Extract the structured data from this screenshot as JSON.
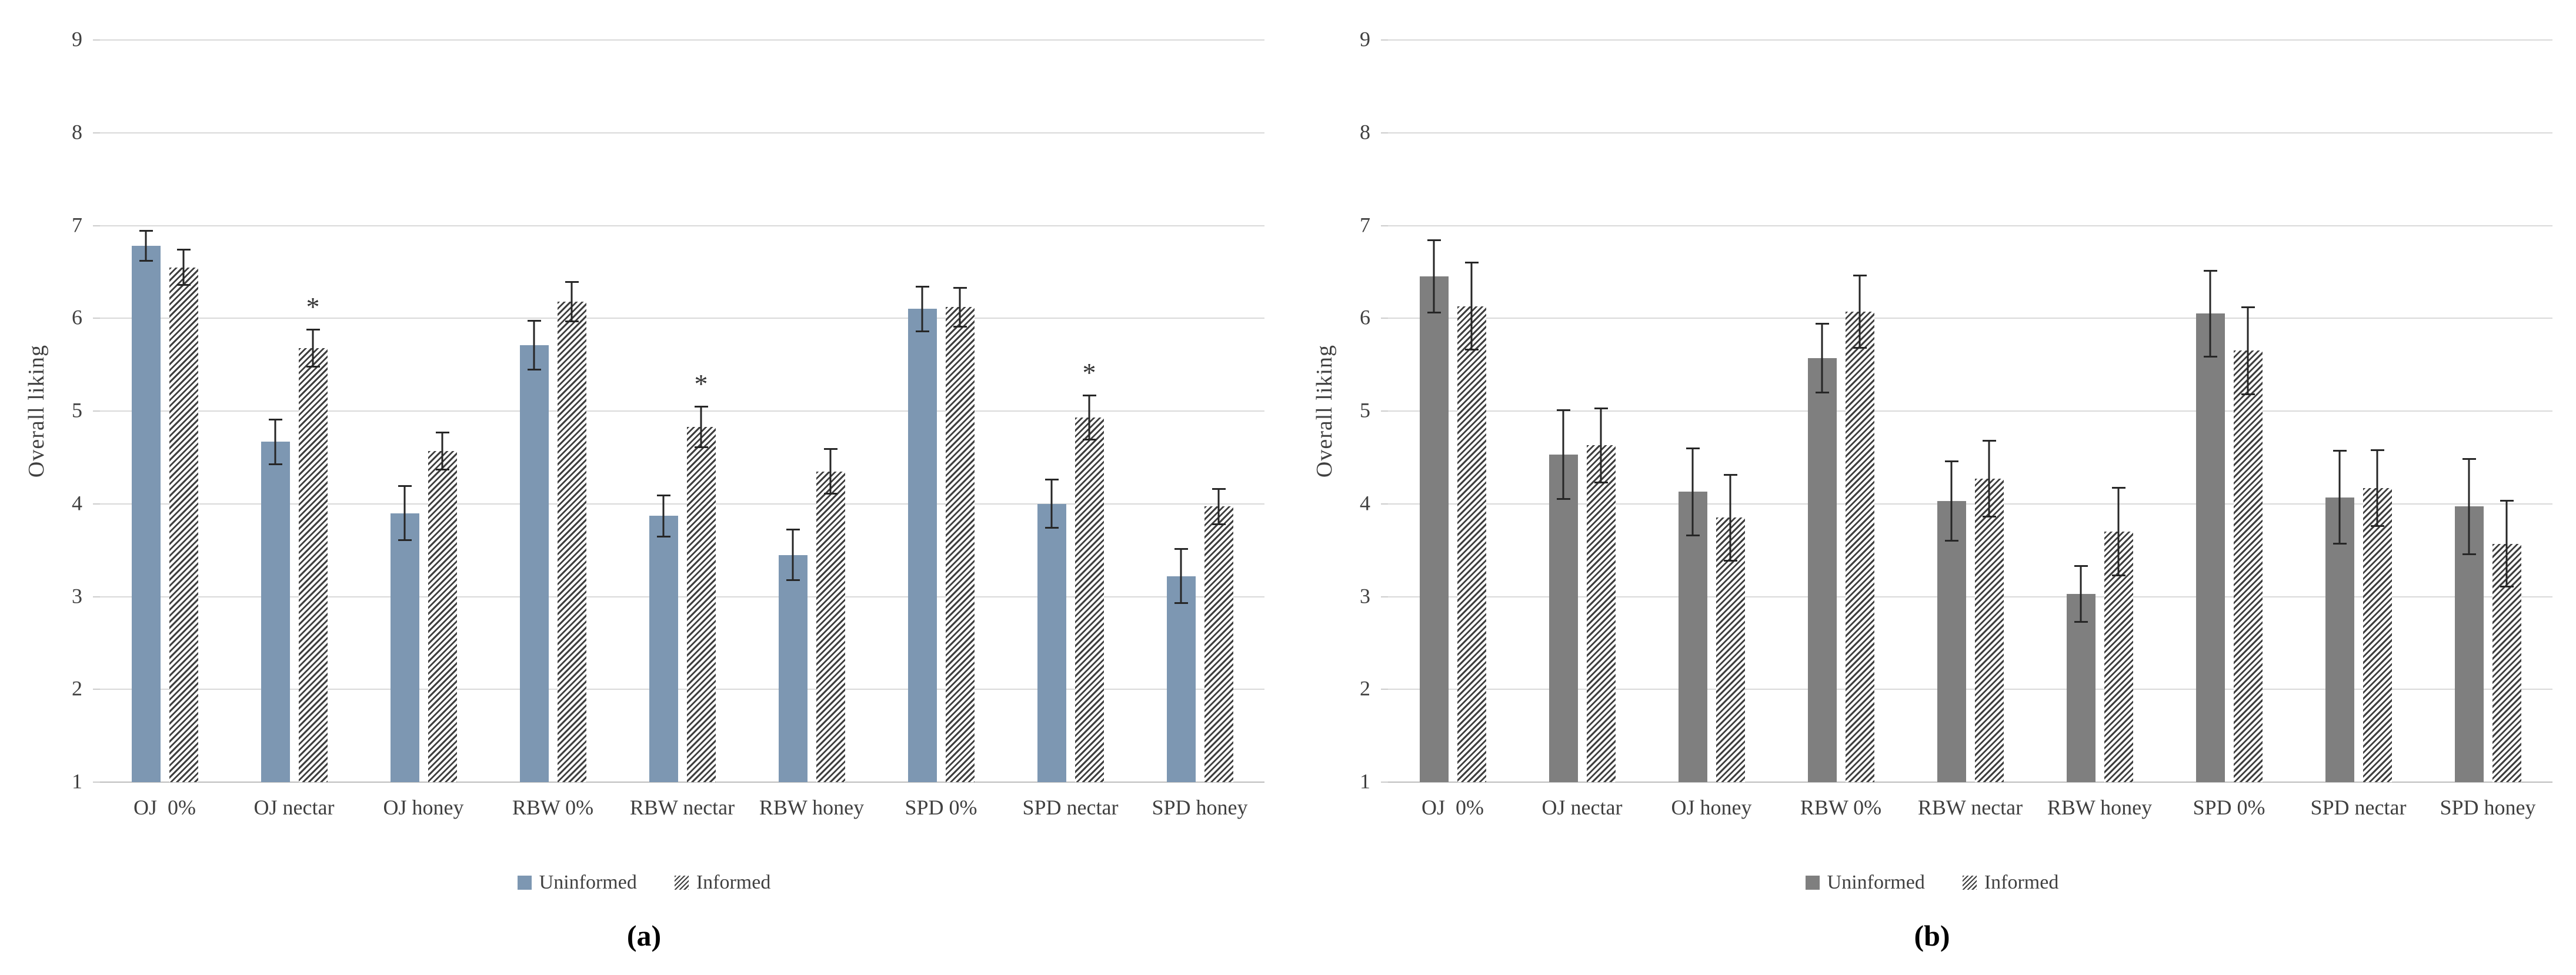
{
  "colors": {
    "uninformed_a": "#7d97b2",
    "uninformed_b": "#7f7f7f",
    "hatch_stripe": "#3f3f3f",
    "gridline": "#d9d9d9",
    "error_bar": "#262626",
    "text": "#404040"
  },
  "chart_data": [
    {
      "type": "bar",
      "panel_label": "(a)",
      "title": "",
      "xlabel": "",
      "ylabel": "Overall liking",
      "ylim": [
        1,
        9
      ],
      "yticks": [
        9,
        8,
        7,
        6,
        5,
        4,
        3,
        2,
        1
      ],
      "grid": true,
      "legend_position": "bottom",
      "categories": [
        "OJ  0%",
        "OJ nectar",
        "OJ honey",
        "RBW 0%",
        "RBW nectar",
        "RBW honey",
        "SPD 0%",
        "SPD nectar",
        "SPD honey"
      ],
      "series": [
        {
          "name": "Uninformed",
          "style": "solid",
          "color": "#7d97b2",
          "values": [
            6.78,
            4.67,
            3.9,
            5.71,
            3.87,
            3.45,
            6.1,
            4.0,
            3.22
          ],
          "errors": [
            0.17,
            0.25,
            0.3,
            0.27,
            0.23,
            0.28,
            0.25,
            0.27,
            0.3
          ]
        },
        {
          "name": "Informed",
          "style": "hatch",
          "color": "#3f3f3f",
          "values": [
            6.55,
            5.68,
            4.57,
            6.18,
            4.83,
            4.35,
            6.12,
            4.93,
            3.97
          ],
          "errors": [
            0.2,
            0.21,
            0.21,
            0.22,
            0.23,
            0.25,
            0.22,
            0.25,
            0.2
          ],
          "significance": [
            "",
            "*",
            "",
            "",
            "*",
            "",
            "",
            "*",
            ""
          ]
        }
      ]
    },
    {
      "type": "bar",
      "panel_label": "(b)",
      "title": "",
      "xlabel": "",
      "ylabel": "Overall liking",
      "ylim": [
        1,
        9
      ],
      "yticks": [
        9,
        8,
        7,
        6,
        5,
        4,
        3,
        2,
        1
      ],
      "grid": true,
      "legend_position": "bottom",
      "categories": [
        "OJ  0%",
        "OJ nectar",
        "OJ honey",
        "RBW 0%",
        "RBW nectar",
        "RBW honey",
        "SPD 0%",
        "SPD nectar",
        "SPD honey"
      ],
      "series": [
        {
          "name": "Uninformed",
          "style": "solid",
          "color": "#7f7f7f",
          "values": [
            6.45,
            4.53,
            4.13,
            5.57,
            4.03,
            3.03,
            6.05,
            4.07,
            3.97
          ],
          "errors": [
            0.4,
            0.49,
            0.48,
            0.38,
            0.44,
            0.31,
            0.47,
            0.51,
            0.52
          ]
        },
        {
          "name": "Informed",
          "style": "hatch",
          "color": "#3f3f3f",
          "values": [
            6.13,
            4.63,
            3.85,
            6.07,
            4.27,
            3.7,
            5.65,
            4.17,
            3.57
          ],
          "errors": [
            0.48,
            0.41,
            0.47,
            0.4,
            0.42,
            0.48,
            0.48,
            0.42,
            0.47
          ]
        }
      ]
    }
  ]
}
